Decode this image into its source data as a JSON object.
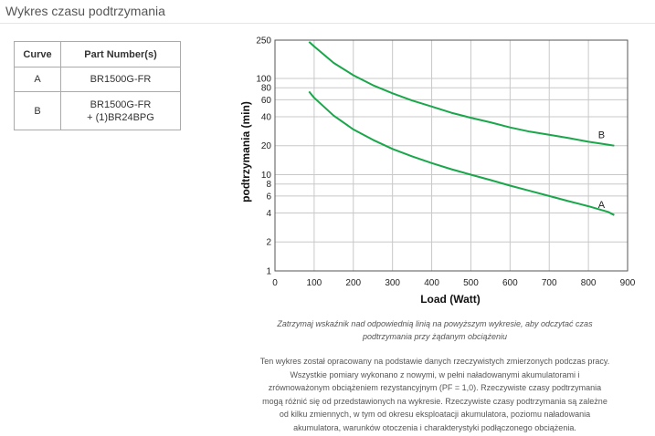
{
  "page": {
    "title": "Wykres czasu podtrzymania"
  },
  "table": {
    "headers": [
      "Curve",
      "Part Number(s)"
    ],
    "rows": [
      {
        "curve": "A",
        "part_line1": "BR1500G-FR",
        "part_line2": ""
      },
      {
        "curve": "B",
        "part_line1": "BR1500G-FR",
        "part_line2": "+ (1)BR24BPG"
      }
    ]
  },
  "chart_data": {
    "type": "line",
    "xlabel": "Load (Watt)",
    "ylabel": "podtrzymania (min)",
    "xlim": [
      0,
      900
    ],
    "ylim": [
      1,
      250
    ],
    "y_scale": "log",
    "grid": true,
    "x_ticks": [
      "0",
      "100",
      "200",
      "300",
      "400",
      "500",
      "600",
      "700",
      "800",
      "900"
    ],
    "y_ticks": [
      {
        "value": 1,
        "label": "1"
      },
      {
        "value": 2,
        "label": "2"
      },
      {
        "value": 4,
        "label": "4"
      },
      {
        "value": 6,
        "label": "6"
      },
      {
        "value": 8,
        "label": "8"
      },
      {
        "value": 10,
        "label": "10"
      },
      {
        "value": 20,
        "label": "20"
      },
      {
        "value": 40,
        "label": "40"
      },
      {
        "value": 60,
        "label": "60"
      },
      {
        "value": 80,
        "label": "80"
      },
      {
        "value": 100,
        "label": "100"
      },
      {
        "value": 250,
        "label": "250"
      }
    ],
    "series": [
      {
        "name": "B",
        "color": "#1aa64a",
        "points": [
          [
            87,
            240
          ],
          [
            100,
            215
          ],
          [
            150,
            145
          ],
          [
            200,
            108
          ],
          [
            250,
            85
          ],
          [
            300,
            70
          ],
          [
            350,
            59
          ],
          [
            400,
            51
          ],
          [
            450,
            44
          ],
          [
            500,
            39
          ],
          [
            550,
            35
          ],
          [
            600,
            31
          ],
          [
            650,
            28
          ],
          [
            700,
            26
          ],
          [
            750,
            24
          ],
          [
            800,
            22
          ],
          [
            850,
            20.5
          ],
          [
            866,
            20
          ]
        ]
      },
      {
        "name": "A",
        "color": "#1aa64a",
        "points": [
          [
            87,
            73
          ],
          [
            100,
            63
          ],
          [
            150,
            41
          ],
          [
            200,
            29.5
          ],
          [
            250,
            23
          ],
          [
            300,
            18.5
          ],
          [
            350,
            15.5
          ],
          [
            400,
            13.2
          ],
          [
            450,
            11.4
          ],
          [
            500,
            10
          ],
          [
            550,
            8.8
          ],
          [
            600,
            7.7
          ],
          [
            650,
            6.8
          ],
          [
            700,
            6
          ],
          [
            750,
            5.3
          ],
          [
            800,
            4.7
          ],
          [
            850,
            4.1
          ],
          [
            866,
            3.8
          ]
        ]
      }
    ]
  },
  "caption": {
    "line1": "Zatrzymaj wskaźnik nad odpowiednią linią na powyższym wykresie, aby odczytać czas",
    "line2": "podtrzymania przy żądanym obciążeniu"
  },
  "note": {
    "lines": [
      "Ten wykres został opracowany na podstawie danych rzeczywistych zmierzonych podczas pracy.",
      "Wszystkie pomiary wykonano z nowymi, w pełni naładowanymi akumulatorami i",
      "zrównoważonym obciążeniem rezystancyjnym (PF = 1,0). Rzeczywiste czasy podtrzymania",
      "mogą różnić się od przedstawionych na wykresie. Rzeczywiste czasy podtrzymania są zależne",
      "od kilku zmiennych, w tym od okresu eksploatacji akumulatora, poziomu naładowania",
      "akumulatora, warunków otoczenia i charakterystyki podłączonego obciążenia."
    ]
  }
}
